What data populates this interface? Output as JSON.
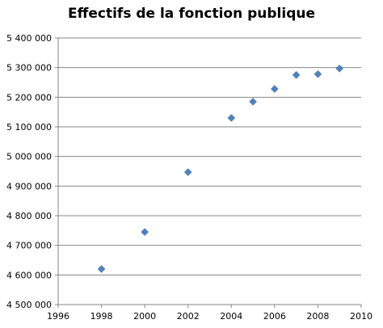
{
  "chart_data": {
    "type": "scatter",
    "title": "Effectifs de la fonction publique",
    "xlabel": "",
    "ylabel": "",
    "xlim": [
      1996,
      2010
    ],
    "ylim": [
      4500000,
      5400000
    ],
    "x_ticks": [
      1996,
      1998,
      2000,
      2002,
      2004,
      2006,
      2008,
      2010
    ],
    "x_tick_labels": [
      "1996",
      "1998",
      "2000",
      "2002",
      "2004",
      "2006",
      "2008",
      "2010"
    ],
    "y_ticks": [
      4500000,
      4600000,
      4700000,
      4800000,
      4900000,
      5000000,
      5100000,
      5200000,
      5300000,
      5400000
    ],
    "y_tick_labels": [
      "4 500 000",
      "4 600 000",
      "4 700 000",
      "4 800 000",
      "4 900 000",
      "5 000 000",
      "5 100 000",
      "5 200 000",
      "5 300 000",
      "5 400 000"
    ],
    "grid": "horizontal",
    "legend": "none",
    "marker_color": "#4F81BD",
    "series": [
      {
        "x": [
          1998,
          2000,
          2002,
          2004,
          2005,
          2006,
          2007,
          2008,
          2009
        ],
        "y": [
          4620000,
          4745000,
          4947000,
          5130000,
          5185000,
          5228000,
          5275000,
          5278000,
          5297000
        ]
      }
    ]
  }
}
